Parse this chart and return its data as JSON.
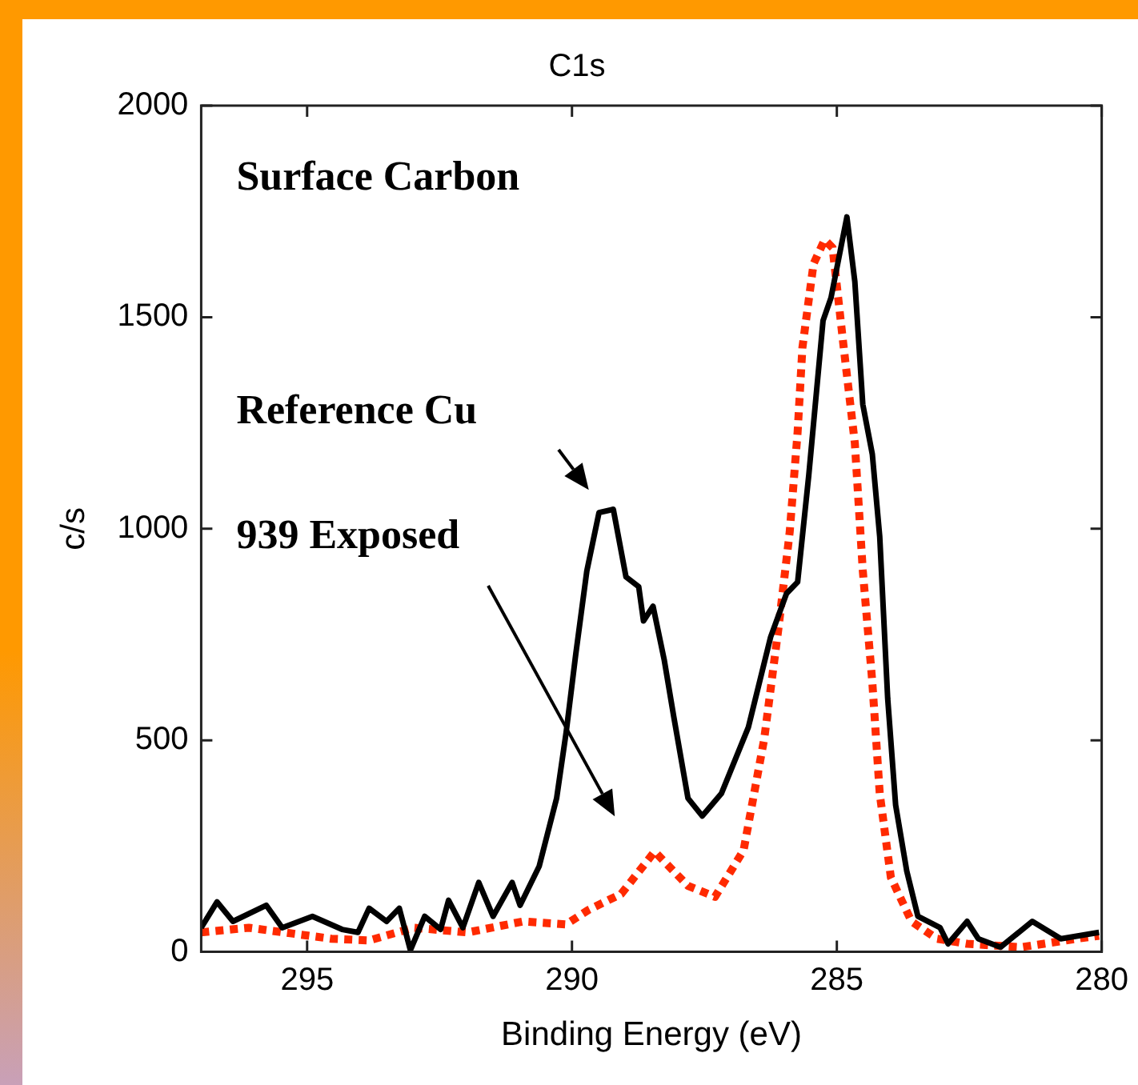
{
  "chart_data": {
    "type": "line",
    "title": "C1s",
    "xlabel": "Binding Energy (eV)",
    "ylabel": "c/s",
    "xlim": [
      297,
      280
    ],
    "xticks": [
      295,
      290,
      285,
      280
    ],
    "ylim": [
      0,
      2000
    ],
    "yticks": [
      0,
      500,
      1000,
      1500,
      2000
    ],
    "grid": false,
    "legend": false,
    "marker": "none",
    "annotations": [
      "Surface Carbon",
      "Reference Cu",
      "939 Exposed"
    ],
    "series": [
      {
        "color": "#000000",
        "line_style": "solid",
        "x": [
          297,
          296.7,
          296.4,
          295.77,
          295.47,
          294.9,
          294.34,
          294.04,
          293.83,
          293.5,
          293.26,
          293.05,
          292.78,
          292.48,
          292.33,
          292.06,
          291.76,
          291.49,
          291.13,
          290.98,
          290.62,
          290.29,
          290.11,
          289.93,
          289.72,
          289.49,
          289.22,
          288.98,
          288.74,
          288.65,
          288.47,
          288.26,
          288.08,
          287.81,
          287.54,
          287.18,
          286.67,
          286.25,
          285.95,
          285.74,
          285.53,
          285.26,
          285.11,
          284.81,
          284.66,
          284.51,
          284.33,
          284.19,
          284.04,
          283.89,
          283.68,
          283.47,
          283.05,
          282.9,
          282.54,
          282.33,
          281.91,
          281.31,
          280.77,
          280.05
        ],
        "values": [
          57,
          118,
          72,
          110,
          57,
          84,
          53,
          46,
          103,
          72,
          103,
          4,
          84,
          53,
          122,
          57,
          164,
          84,
          164,
          110,
          202,
          363,
          519,
          702,
          900,
          1038,
          1046,
          886,
          863,
          782,
          817,
          691,
          557,
          363,
          321,
          374,
          531,
          744,
          847,
          874,
          1126,
          1492,
          1546,
          1737,
          1584,
          1294,
          1176,
          981,
          599,
          347,
          191,
          84,
          57,
          19,
          72,
          31,
          11,
          72,
          31,
          46
        ]
      },
      {
        "color": "#ff2a00",
        "line_style": "dotted",
        "x": [
          297,
          296.1,
          294.54,
          293.83,
          292.99,
          291.97,
          290.92,
          290.11,
          289.69,
          289.07,
          288.44,
          287.81,
          287.3,
          286.76,
          286.37,
          286.1,
          285.89,
          285.74,
          285.65,
          285.44,
          285.23,
          285.08,
          284.87,
          284.66,
          284.51,
          284.33,
          284.19,
          283.98,
          283.59,
          283.11,
          282.54,
          281.52,
          280.47,
          280.05
        ],
        "values": [
          46,
          57,
          31,
          27,
          57,
          46,
          72,
          65,
          99,
          137,
          237,
          156,
          130,
          240,
          504,
          767,
          992,
          1229,
          1428,
          1626,
          1683,
          1664,
          1428,
          1202,
          901,
          637,
          374,
          176,
          72,
          31,
          19,
          11,
          31,
          38
        ]
      }
    ]
  }
}
